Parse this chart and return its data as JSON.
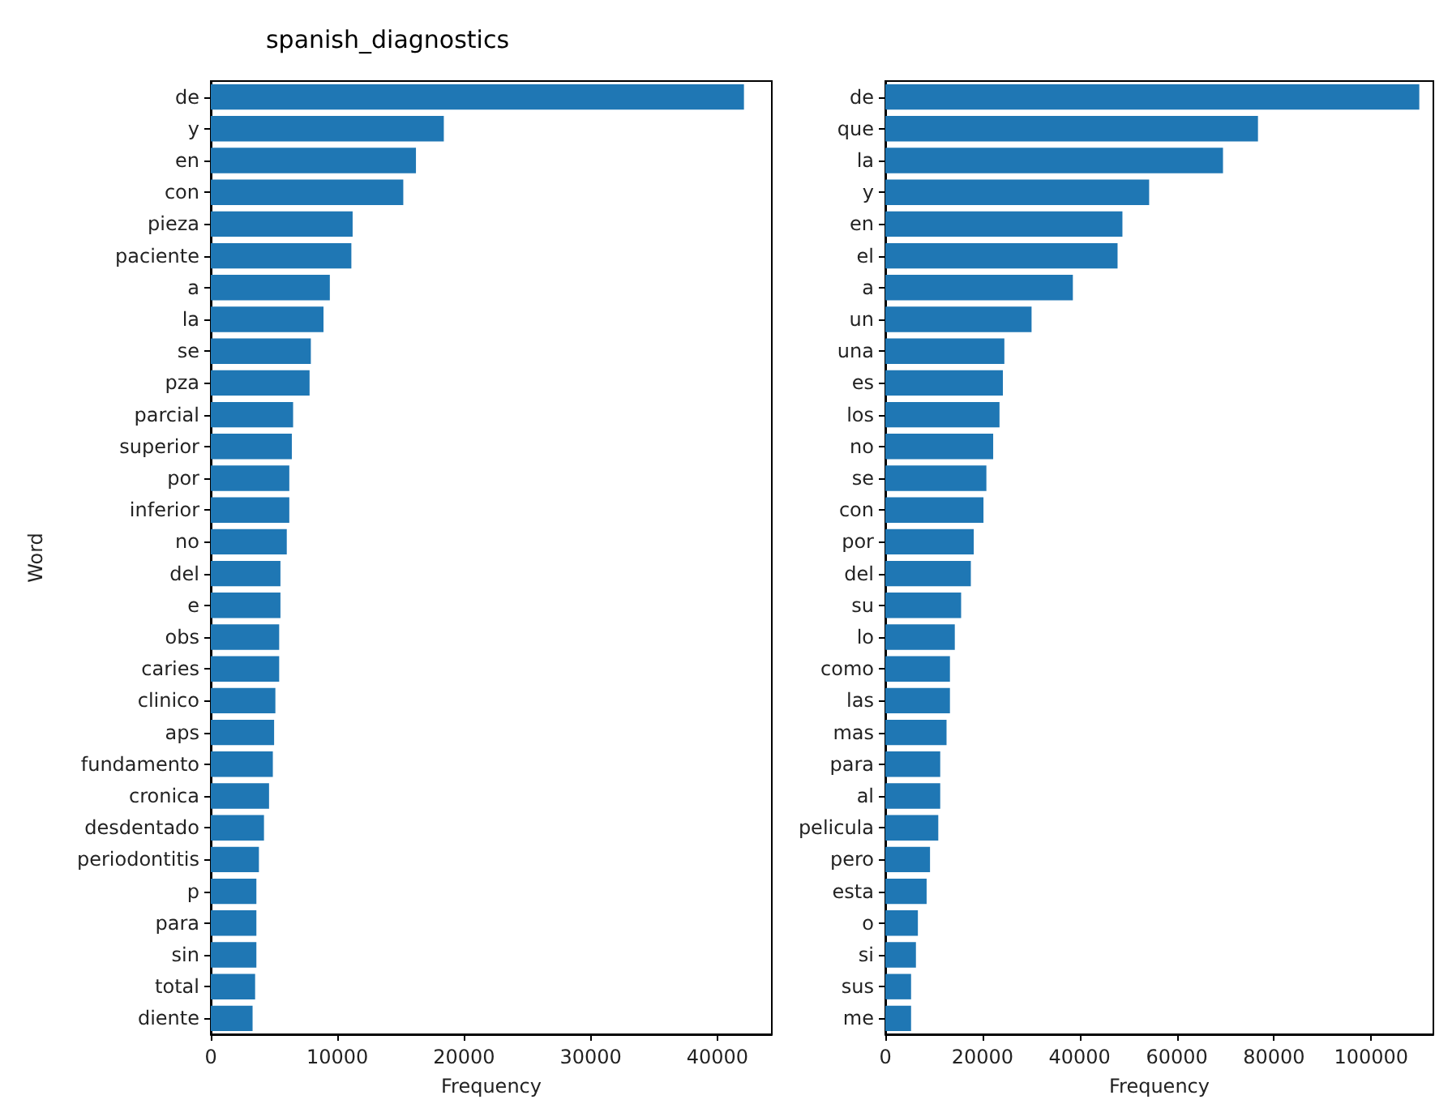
{
  "chart_data": [
    {
      "type": "bar",
      "orientation": "horizontal",
      "title": "spanish_diagnostics",
      "xlabel": "Frequency",
      "ylabel": "Word",
      "color": "#1f77b4",
      "categories": [
        "de",
        "y",
        "en",
        "con",
        "pieza",
        "paciente",
        "a",
        "la",
        "se",
        "pza",
        "parcial",
        "superior",
        "por",
        "inferior",
        "no",
        "del",
        "e",
        "obs",
        "caries",
        "clinico",
        "aps",
        "fundamento",
        "cronica",
        "desdentado",
        "periodontitis",
        "p",
        "para",
        "sin",
        "total",
        "diente"
      ],
      "values": [
        42100,
        18400,
        16200,
        15200,
        11200,
        11100,
        9400,
        8900,
        7900,
        7800,
        6500,
        6400,
        6200,
        6200,
        6000,
        5500,
        5500,
        5400,
        5400,
        5100,
        5000,
        4900,
        4600,
        4200,
        3800,
        3600,
        3600,
        3600,
        3500,
        3300
      ],
      "xlim": [
        0,
        44300
      ],
      "xticks": [
        0,
        10000,
        20000,
        30000,
        40000
      ],
      "grid": false
    },
    {
      "type": "bar",
      "orientation": "horizontal",
      "xlabel": "Frequency",
      "color": "#1f77b4",
      "categories": [
        "de",
        "que",
        "la",
        "y",
        "en",
        "el",
        "a",
        "un",
        "una",
        "es",
        "los",
        "no",
        "se",
        "con",
        "por",
        "del",
        "su",
        "lo",
        "como",
        "las",
        "mas",
        "para",
        "al",
        "pelicula",
        "pero",
        "esta",
        "o",
        "si",
        "sus",
        "me"
      ],
      "values": [
        109900,
        76700,
        69500,
        54300,
        48800,
        47800,
        38600,
        30100,
        24500,
        24200,
        23500,
        22200,
        20800,
        20200,
        18200,
        17600,
        15600,
        14300,
        13300,
        13300,
        12600,
        11300,
        11300,
        10900,
        9200,
        8500,
        6700,
        6300,
        5300,
        5300
      ],
      "xlim": [
        0,
        112800
      ],
      "xticks": [
        0,
        20000,
        40000,
        60000,
        80000,
        100000
      ],
      "grid": false
    }
  ]
}
